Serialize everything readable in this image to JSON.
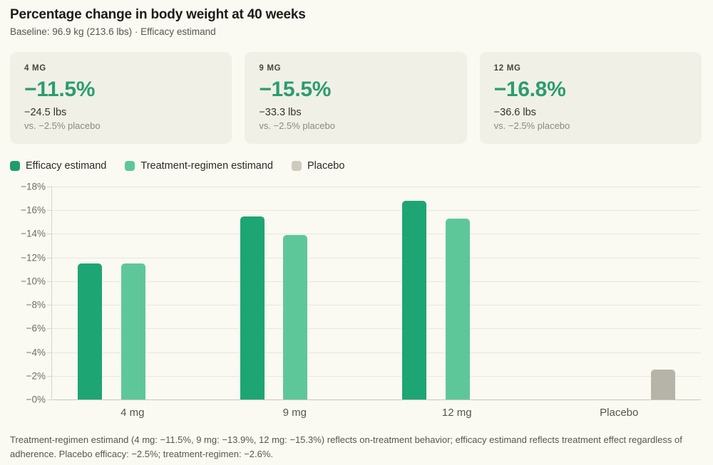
{
  "header": {
    "title": "Percentage change in body weight at 40 weeks",
    "subtitle": "Baseline: 96.9 kg (213.6 lbs) · Efficacy estimand"
  },
  "cards": [
    {
      "label": "4 MG",
      "value": "−11.5%",
      "lbs": "−24.5 lbs",
      "vs": "vs. −2.5% placebo"
    },
    {
      "label": "9 MG",
      "value": "−15.5%",
      "lbs": "−33.3 lbs",
      "vs": "vs. −2.5% placebo"
    },
    {
      "label": "12 MG",
      "value": "−16.8%",
      "lbs": "−36.6 lbs",
      "vs": "vs. −2.5% placebo"
    }
  ],
  "legend": [
    {
      "label": "Efficacy estimand",
      "color": "#1f9c6d"
    },
    {
      "label": "Treatment-regimen estimand",
      "color": "#5ec79a"
    },
    {
      "label": "Placebo",
      "color": "#cdcabe"
    }
  ],
  "colors": {
    "stat_green": "#2a9d6f",
    "efficacy_bar": "#1da574",
    "treatment_bar": "#5ec79a",
    "placebo_bar": "#b6b3a9"
  },
  "chart_data": {
    "type": "bar",
    "categories": [
      "4 mg",
      "9 mg",
      "12 mg",
      "Placebo"
    ],
    "series": [
      {
        "name": "Efficacy estimand",
        "color": "#1da574",
        "values": [
          -11.5,
          -15.5,
          -16.8,
          null
        ]
      },
      {
        "name": "Treatment-regimen estimand",
        "color": "#5ec79a",
        "values": [
          -11.5,
          -13.9,
          -15.3,
          null
        ]
      },
      {
        "name": "Placebo",
        "color": "#b6b3a9",
        "values": [
          null,
          null,
          null,
          -2.5
        ]
      }
    ],
    "title": "Percentage change in body weight at 40 weeks",
    "xlabel": "",
    "ylabel": "",
    "y_ticks": [
      "−18%",
      "−16%",
      "−14%",
      "−12%",
      "−10%",
      "−8%",
      "−6%",
      "−4%",
      "−2%",
      "−0%"
    ],
    "ylim": [
      0,
      -18
    ],
    "axis_inverted": true,
    "grid": true,
    "legend_position": "top"
  },
  "footnote": "Treatment-regimen estimand (4 mg: −11.5%, 9 mg: −13.9%, 12 mg: −15.3%) reflects on-treatment behavior; efficacy estimand reflects treatment effect regardless of adherence. Placebo efficacy: −2.5%; treatment-regimen: −2.6%."
}
